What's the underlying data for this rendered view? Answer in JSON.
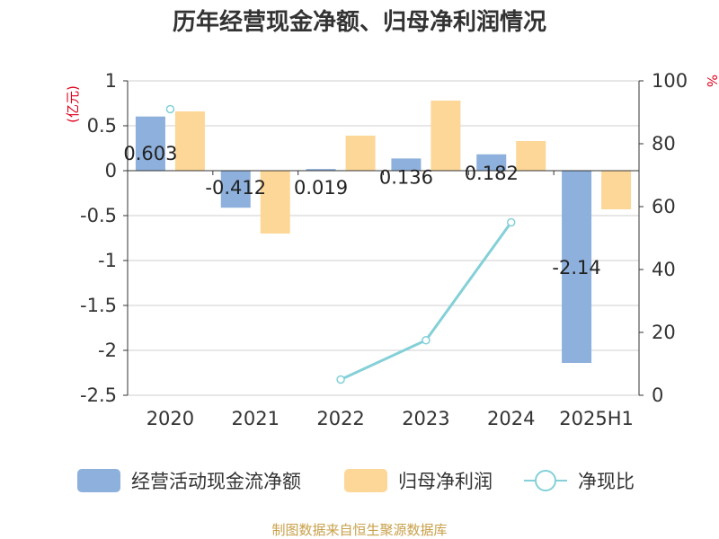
{
  "chart_data": {
    "type": "bar",
    "title": "历年经营现金净额、归母净利润情况",
    "categories": [
      "2020",
      "2021",
      "2022",
      "2023",
      "2024",
      "2025H1"
    ],
    "left_axis": {
      "unit": "(亿元)",
      "ylim": [
        -2.5,
        1
      ],
      "ticks": [
        1,
        0.5,
        0,
        -0.5,
        -1,
        -1.5,
        -2,
        -2.5
      ],
      "tick_labels": [
        "1",
        "0.5",
        "0",
        "-0.5",
        "-1",
        "-1.5",
        "-2",
        "-2.5"
      ]
    },
    "right_axis": {
      "unit": "%",
      "ylim": [
        0,
        100
      ],
      "ticks": [
        100,
        80,
        60,
        40,
        20,
        0
      ],
      "tick_labels": [
        "100",
        "80",
        "60",
        "40",
        "20",
        "0"
      ]
    },
    "series": [
      {
        "name": "经营活动现金流净额",
        "type": "bar",
        "axis": "left",
        "color": "#8eb0dc",
        "values": [
          0.603,
          -0.412,
          0.019,
          0.136,
          0.182,
          -2.14
        ],
        "labels": [
          "0.603",
          "-0.412",
          "0.019",
          "0.136",
          "0.182",
          "-2.14"
        ]
      },
      {
        "name": "归母净利润",
        "type": "bar",
        "axis": "left",
        "color": "#fdd797",
        "values": [
          0.66,
          -0.7,
          0.39,
          0.78,
          0.33,
          -0.43
        ]
      },
      {
        "name": "净现比",
        "type": "line",
        "axis": "right",
        "color": "#84d0d8",
        "values": [
          91,
          null,
          5,
          17.5,
          55,
          null
        ]
      }
    ],
    "grid": true,
    "legend_position": "bottom"
  },
  "source_note": "制图数据来自恒生聚源数据库"
}
